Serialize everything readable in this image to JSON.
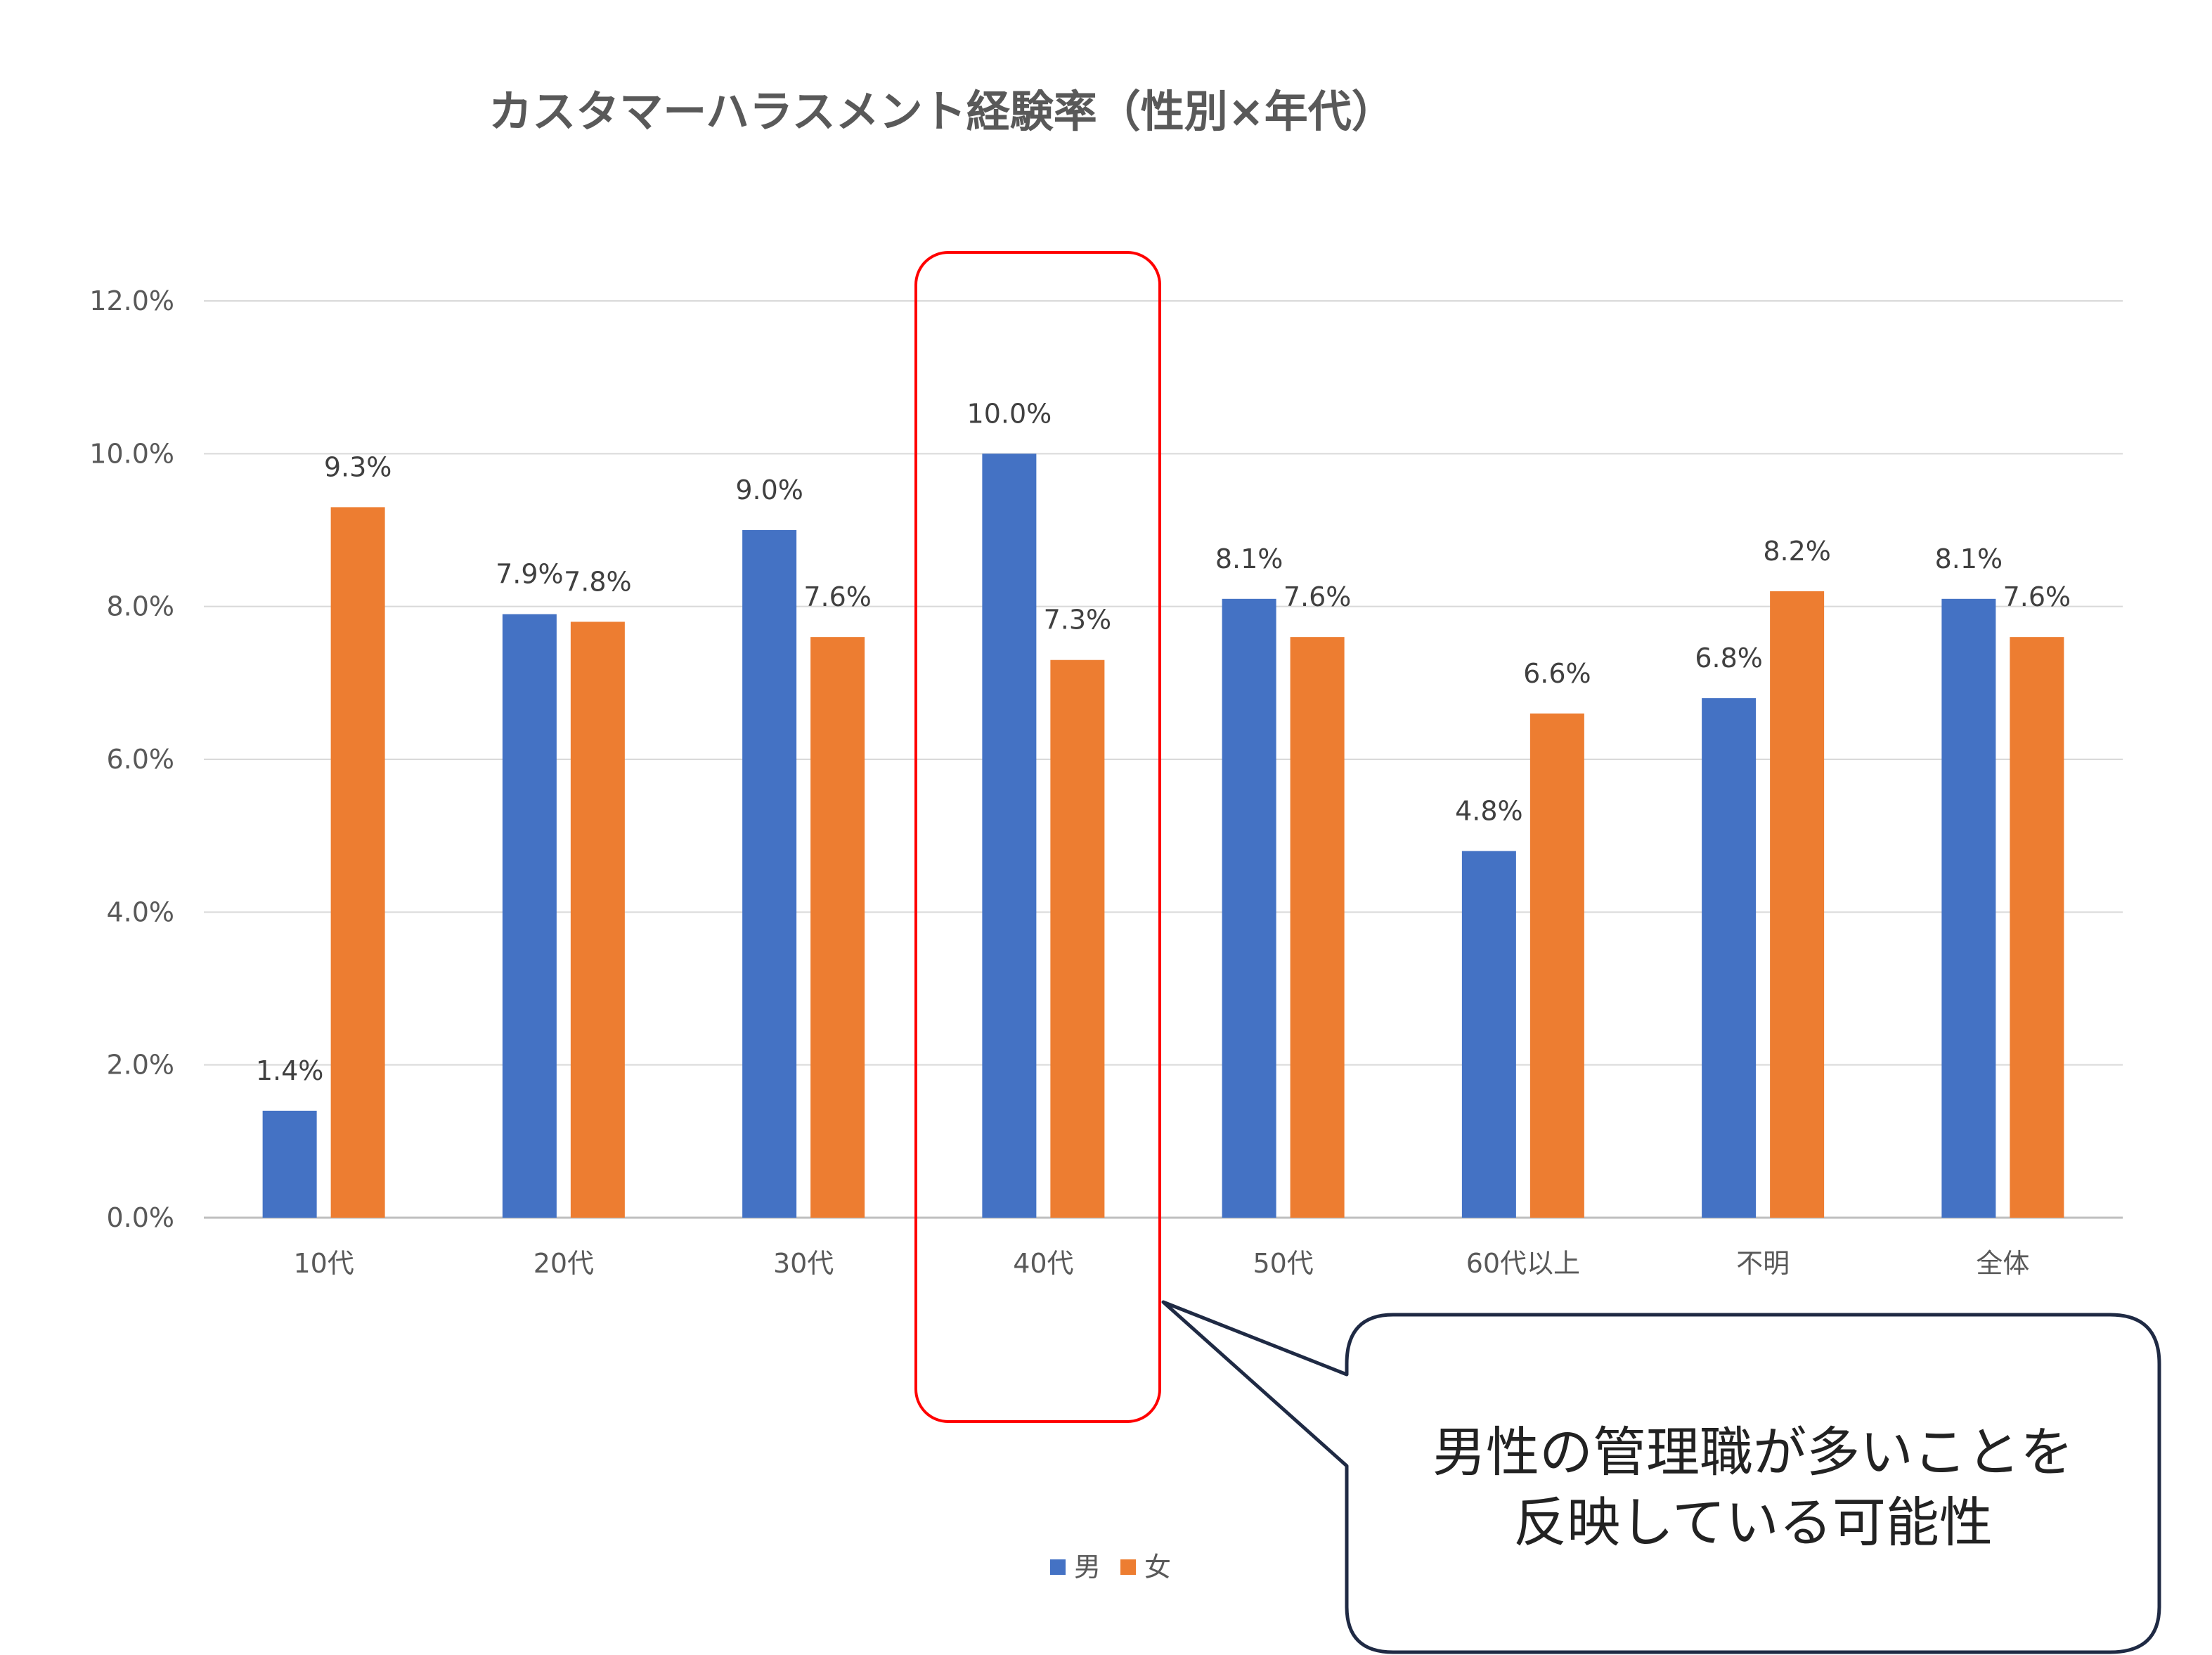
{
  "chart_data": {
    "type": "bar",
    "title": "カスタマーハラスメント経験率（性別×年代）",
    "xlabel": "",
    "ylabel": "",
    "ylim": [
      0,
      12
    ],
    "yticks": [
      "0.0%",
      "2.0%",
      "4.0%",
      "6.0%",
      "8.0%",
      "10.0%",
      "12.0%"
    ],
    "categories": [
      "10代",
      "20代",
      "30代",
      "40代",
      "50代",
      "60代以上",
      "不明",
      "全体"
    ],
    "series": [
      {
        "name": "男",
        "color": "#4472C4",
        "values": [
          1.4,
          7.9,
          9.0,
          10.0,
          8.1,
          4.8,
          6.8,
          8.1
        ],
        "labels": [
          "1.4%",
          "7.9%",
          "9.0%",
          "10.0%",
          "8.1%",
          "4.8%",
          "6.8%",
          "8.1%"
        ]
      },
      {
        "name": "女",
        "color": "#ED7D31",
        "values": [
          9.3,
          7.8,
          7.6,
          7.3,
          7.6,
          6.6,
          8.2,
          7.6
        ],
        "labels": [
          "9.3%",
          "7.8%",
          "7.6%",
          "7.3%",
          "7.6%",
          "6.6%",
          "8.2%",
          "7.6%"
        ]
      }
    ],
    "grid": true,
    "legend_position": "bottom",
    "highlight_category": "40代",
    "highlight_color": "#FF0000",
    "annotation": {
      "lines": [
        "男性の管理職が多いことを",
        "反映している可能性"
      ]
    }
  }
}
